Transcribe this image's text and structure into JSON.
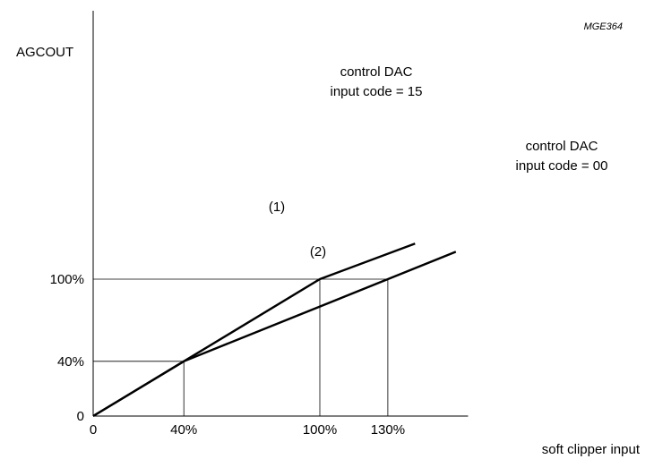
{
  "chart_data": {
    "type": "line",
    "title": "",
    "figure_ref": "MGE364",
    "ylabel": "AGCOUT",
    "xlabel": "soft clipper input",
    "x_ticks": [
      "0",
      "40%",
      "100%",
      "130%"
    ],
    "y_ticks": [
      "0",
      "40%",
      "100%"
    ],
    "xlim": [
      0,
      165
    ],
    "ylim": [
      0,
      150
    ],
    "grid": false,
    "guide_lines": [
      {
        "x": 40,
        "y": 40
      },
      {
        "x": 100,
        "y": 100
      },
      {
        "x": 130,
        "y": 100
      }
    ],
    "series": [
      {
        "marker": "(1)",
        "label_line1": "control DAC",
        "label_line2": "input code = 15",
        "x": [
          0,
          40,
          100,
          142
        ],
        "y": [
          0,
          40,
          100,
          126
        ]
      },
      {
        "marker": "(2)",
        "label_line1": "control DAC",
        "label_line2": "input code = 00",
        "x": [
          0,
          40,
          130,
          160
        ],
        "y": [
          0,
          40,
          100,
          120
        ]
      }
    ]
  },
  "colors": {
    "line": "#000000",
    "background": "#ffffff"
  }
}
